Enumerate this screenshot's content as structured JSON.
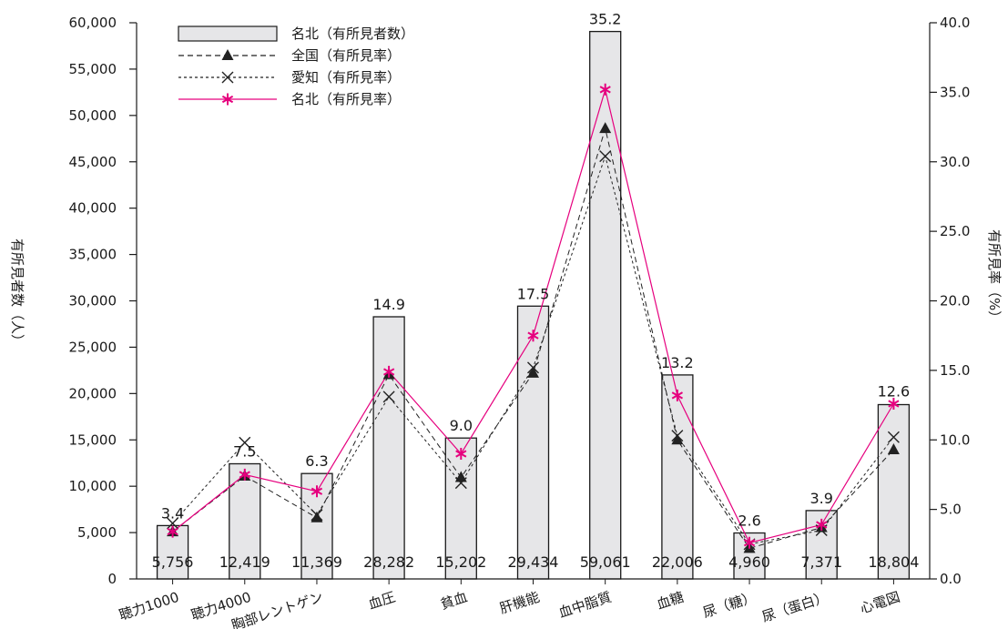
{
  "chart_data": {
    "type": "bar",
    "categories": [
      "聴力1000",
      "聴力4000",
      "胸部レントゲン",
      "血圧",
      "貧血",
      "肝機能",
      "血中脂質",
      "血糖",
      "尿（糖）",
      "尿（蛋白）",
      "心電図"
    ],
    "left_axis": {
      "ylabel": "有所見者数（人）",
      "ylim": [
        0,
        60000
      ],
      "ticks": [
        "0",
        "5,000",
        "10,000",
        "15,000",
        "20,000",
        "25,000",
        "30,000",
        "35,000",
        "40,000",
        "45,000",
        "50,000",
        "55,000",
        "60,000"
      ]
    },
    "right_axis": {
      "ylabel": "有所見率（%）",
      "ylim": [
        0,
        40
      ],
      "ticks": [
        "0.0",
        "5.0",
        "10.0",
        "15.0",
        "20.0",
        "25.0",
        "30.0",
        "35.0",
        "40.0"
      ]
    },
    "bar_series": {
      "name": "名北（有所見者数）",
      "values": [
        5756,
        12419,
        11369,
        28282,
        15202,
        29434,
        59061,
        22006,
        4960,
        7371,
        18804
      ],
      "value_labels": [
        "5,756",
        "12,419",
        "11,369",
        "28,282",
        "15,202",
        "29,434",
        "59,061",
        "22,006",
        "4,960",
        "7,371",
        "18,804"
      ],
      "color": "#e6e6e8"
    },
    "line_series": [
      {
        "name": "全国（有所見率）",
        "values": [
          3.4,
          7.4,
          4.4,
          14.7,
          7.3,
          14.8,
          32.4,
          10.0,
          2.2,
          3.7,
          9.3
        ],
        "marker": "triangle",
        "dash": "dashed",
        "color": "#222222"
      },
      {
        "name": "愛知（有所見率）",
        "values": [
          4.0,
          9.8,
          4.6,
          13.1,
          6.9,
          15.2,
          30.4,
          10.3,
          2.5,
          3.5,
          10.2
        ],
        "marker": "x",
        "dash": "dotted",
        "color": "#222222"
      },
      {
        "name": "名北（有所見率）",
        "values": [
          3.4,
          7.5,
          6.3,
          14.9,
          9.0,
          17.5,
          35.2,
          13.2,
          2.6,
          3.9,
          12.6
        ],
        "marker": "asterisk",
        "dash": "solid",
        "color": "#e6007e"
      }
    ],
    "rate_labels": [
      "3.4",
      "7.5",
      "6.3",
      "14.9",
      "9.0",
      "17.5",
      "35.2",
      "13.2",
      "2.6",
      "3.9",
      "12.6"
    ],
    "legend_position": "top-left",
    "grid": false
  }
}
